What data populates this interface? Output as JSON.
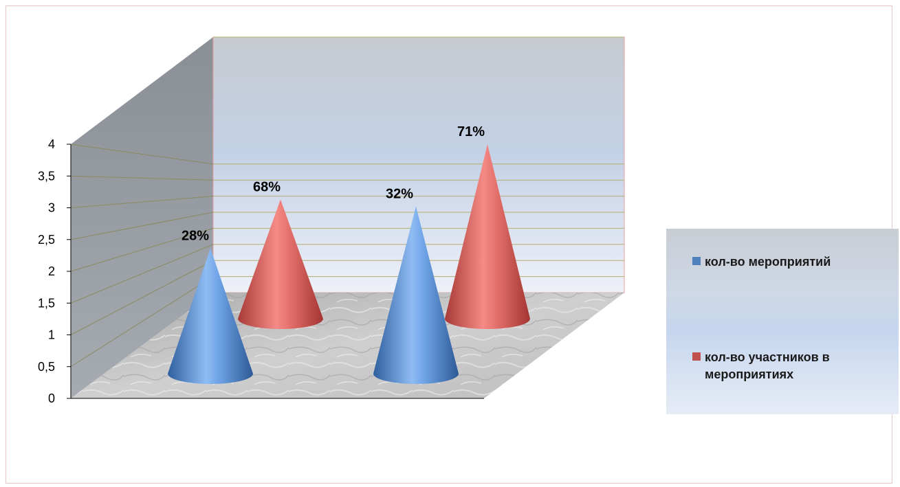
{
  "chart_data": {
    "type": "bar",
    "subtype": "3d-cone",
    "title": "",
    "xlabel": "",
    "ylabel": "",
    "ylim": [
      0,
      4
    ],
    "yticks": [
      "0",
      "0,5",
      "1",
      "1,5",
      "2",
      "2,5",
      "3",
      "3,5",
      "4"
    ],
    "grid": true,
    "legend_position": "right",
    "categories": [
      "",
      ""
    ],
    "series": [
      {
        "name": "кол-во мероприятий",
        "color": "#4f81bd",
        "values": [
          2.1,
          2.8
        ],
        "data_labels": [
          "28%",
          "32%"
        ]
      },
      {
        "name": "кол-во участников в мероприятиях",
        "color": "#c0504d",
        "values": [
          2.6,
          3.8
        ],
        "data_labels": [
          "68%",
          "71%"
        ]
      }
    ]
  }
}
